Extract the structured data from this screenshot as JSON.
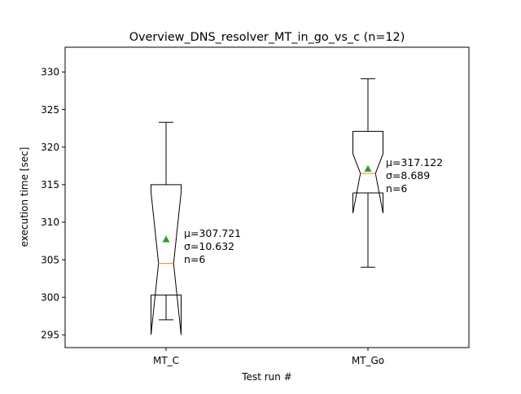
{
  "chart_data": {
    "type": "box",
    "title": "Overview_DNS_resolver_MT_in_go_vs_c (n=12)",
    "xlabel": "Test run #",
    "ylabel": "execution time [sec]",
    "ylim": [
      293.3,
      333.3
    ],
    "yticks": [
      295,
      300,
      305,
      310,
      315,
      320,
      325,
      330
    ],
    "categories": [
      "MT_C",
      "MT_Go"
    ],
    "notched": true,
    "grid": false,
    "boxes": [
      {
        "label": "MT_C",
        "whisker_low": 297.0,
        "q1": 300.3,
        "median": 304.5,
        "q3": 315.0,
        "whisker_high": 323.3,
        "notch_low": 295.0,
        "notch_high": 314.0,
        "mean": 307.721,
        "annotation": [
          "μ=307.721",
          "σ=10.632",
          "n=6"
        ]
      },
      {
        "label": "MT_Go",
        "whisker_low": 304.0,
        "q1": 313.9,
        "median": 316.5,
        "q3": 322.1,
        "whisker_high": 329.1,
        "notch_low": 311.2,
        "notch_high": 319.1,
        "mean": 317.122,
        "annotation": [
          "μ=317.122",
          "σ=8.689",
          "n=6"
        ]
      }
    ],
    "colors": {
      "box": "#000000",
      "median": "#ff7f0e",
      "mean_marker": "#2ca02c"
    }
  }
}
